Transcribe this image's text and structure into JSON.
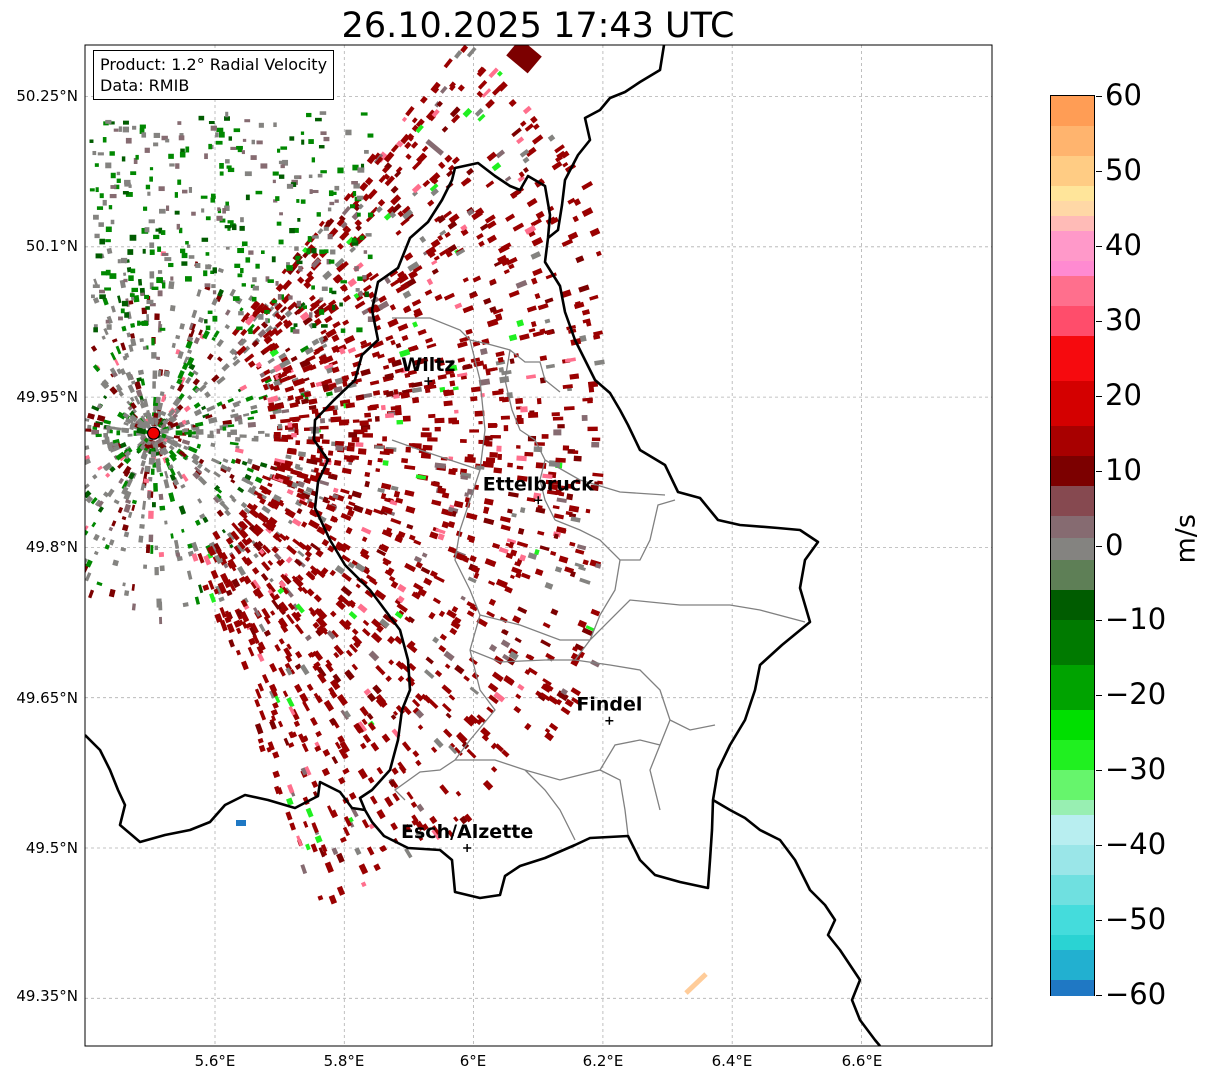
{
  "title": "26.10.2025 17:43 UTC",
  "info": {
    "product": "Product: 1.2° Radial Velocity",
    "data": "Data: RMIB"
  },
  "lat_labels": [
    "50.25°N",
    "50.1°N",
    "49.95°N",
    "49.8°N",
    "49.65°N",
    "49.5°N",
    "49.35°N"
  ],
  "lon_labels": [
    "5.6°E",
    "5.8°E",
    "6°E",
    "6.2°E",
    "6.4°E",
    "6.6°E"
  ],
  "cities": [
    {
      "name": "Wiltz",
      "lon": 5.93,
      "lat": 49.966
    },
    {
      "name": "Ettelbruck",
      "lon": 6.1,
      "lat": 49.847
    },
    {
      "name": "Findel",
      "lon": 6.21,
      "lat": 49.627
    },
    {
      "name": "Esch/Alzette",
      "lon": 5.99,
      "lat": 49.5
    }
  ],
  "radar_site": {
    "lon": 5.505,
    "lat": 49.914
  },
  "colorbar": {
    "unit": "m/s",
    "min": -60,
    "max": 60,
    "tick_labels": [
      "60",
      "50",
      "40",
      "30",
      "20",
      "10",
      "0",
      "−10",
      "−20",
      "−30",
      "−40",
      "−50",
      "−60"
    ],
    "bands": [
      {
        "from": 56,
        "to": 60,
        "color": "#ff9d55"
      },
      {
        "from": 52,
        "to": 56,
        "color": "#ffb46e"
      },
      {
        "from": 48,
        "to": 52,
        "color": "#ffcc84"
      },
      {
        "from": 46,
        "to": 48,
        "color": "#ffe59a"
      },
      {
        "from": 44,
        "to": 46,
        "color": "#ffd8a6"
      },
      {
        "from": 42,
        "to": 44,
        "color": "#ffbbb7"
      },
      {
        "from": 38,
        "to": 42,
        "color": "#ff99c9"
      },
      {
        "from": 36,
        "to": 38,
        "color": "#ff8ad1"
      },
      {
        "from": 32,
        "to": 36,
        "color": "#ff6f8d"
      },
      {
        "from": 28,
        "to": 32,
        "color": "#ff4d6b"
      },
      {
        "from": 22,
        "to": 28,
        "color": "#f60a0e"
      },
      {
        "from": 16,
        "to": 22,
        "color": "#d40000"
      },
      {
        "from": 12,
        "to": 16,
        "color": "#a80000"
      },
      {
        "from": 8,
        "to": 12,
        "color": "#7c0000"
      },
      {
        "from": 4,
        "to": 8,
        "color": "#864950"
      },
      {
        "from": 1,
        "to": 4,
        "color": "#866b71"
      },
      {
        "from": -2,
        "to": 1,
        "color": "#848380"
      },
      {
        "from": -6,
        "to": -2,
        "color": "#5e7f56"
      },
      {
        "from": -10,
        "to": -6,
        "color": "#005c00"
      },
      {
        "from": -16,
        "to": -10,
        "color": "#007a00"
      },
      {
        "from": -22,
        "to": -16,
        "color": "#00a300"
      },
      {
        "from": -26,
        "to": -22,
        "color": "#00df00"
      },
      {
        "from": -30,
        "to": -26,
        "color": "#20f020"
      },
      {
        "from": -34,
        "to": -30,
        "color": "#66f56c"
      },
      {
        "from": -36,
        "to": -34,
        "color": "#98efb2"
      },
      {
        "from": -40,
        "to": -36,
        "color": "#b8eef0"
      },
      {
        "from": -44,
        "to": -40,
        "color": "#9ae6e8"
      },
      {
        "from": -48,
        "to": -44,
        "color": "#6fe0e0"
      },
      {
        "from": -52,
        "to": -48,
        "color": "#44dcdc"
      },
      {
        "from": -54,
        "to": -52,
        "color": "#2ad3d3"
      },
      {
        "from": -58,
        "to": -54,
        "color": "#22b0d0"
      },
      {
        "from": -60,
        "to": -58,
        "color": "#1f78c4"
      }
    ]
  },
  "colors": {
    "strong_red": "#9a0000",
    "dark_red": "#7c0000",
    "gray": "#848380",
    "mauve": "#866b71",
    "green": "#008800",
    "dark_green": "#005c00",
    "light_green": "#20f020",
    "pink": "#ff6f8d",
    "peach": "#ffcc99",
    "blue": "#1f78c4",
    "border_country": "#000000",
    "border_canton": "#808080",
    "grid": "#b0b0b0",
    "radar_marker": "#ee0000"
  }
}
